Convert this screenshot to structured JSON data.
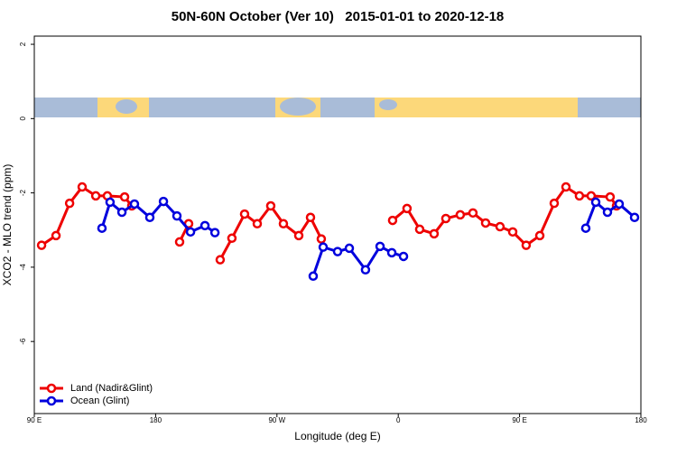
{
  "chart_data": {
    "type": "line",
    "title": "50N-60N October (Ver 10)   2015-01-01 to 2020-12-18",
    "xlabel": "Longitude (deg E)",
    "ylabel": "XCO2 - MLO trend (ppm)",
    "xlim": [
      90,
      540
    ],
    "ylim": [
      -7.94,
      2.22
    ],
    "xticks": [
      {
        "value": 90,
        "label": "90 E"
      },
      {
        "value": 180,
        "label": "180"
      },
      {
        "value": 270,
        "label": "90 W"
      },
      {
        "value": 360,
        "label": "0"
      },
      {
        "value": 450,
        "label": "90 E"
      },
      {
        "value": 540,
        "label": "180"
      }
    ],
    "yticks": [
      2,
      0,
      -2,
      -4,
      -6
    ],
    "legend": "bottom-left",
    "series": [
      {
        "name": "Land (Nadir&Glint)",
        "color": "#ee0000",
        "x": [
          95.4,
          106.1,
          116.2,
          125.5,
          135.6,
          144.2,
          157.0,
          162.3,
          180,
          197.8,
          204.5,
          216,
          227.9,
          236.6,
          246.0,
          255.4,
          265.4,
          274.8,
          286.2,
          294.9,
          302.9,
          330,
          355.8,
          366.5,
          375.9,
          386.6,
          395.3,
          406.0,
          415.4,
          424.8,
          435.5,
          444.9,
          454.9,
          465.0,
          475.7,
          484.4,
          494.4,
          503.1,
          517.2,
          521.9
        ],
        "values": [
          -3.41,
          -3.15,
          -2.28,
          -1.84,
          -2.08,
          -2.08,
          -2.11,
          -2.35,
          null,
          -3.32,
          -2.83,
          null,
          -3.8,
          -3.22,
          -2.57,
          -2.83,
          -2.35,
          -2.83,
          -3.15,
          -2.66,
          -3.24,
          null,
          -2.74,
          -2.42,
          -2.98,
          -3.1,
          -2.69,
          -2.59,
          -2.54,
          -2.81,
          -2.91,
          -3.05,
          -3.41,
          -3.15,
          -2.28,
          -1.84,
          -2.08,
          -2.08,
          -2.11,
          -2.35
        ]
      },
      {
        "name": "Ocean (Glint)",
        "color": "#0000dd",
        "x": [
          140.2,
          146.2,
          155.0,
          164.3,
          175.7,
          185.8,
          195.8,
          205.9,
          216.6,
          224.0,
          280,
          296.9,
          304.3,
          315.0,
          323.7,
          335.7,
          346.5,
          355.2,
          363.9,
          450,
          499.1,
          506.5,
          515.2,
          523.9,
          535.3
        ],
        "values": [
          -2.95,
          -2.25,
          -2.52,
          -2.3,
          -2.66,
          -2.23,
          -2.62,
          -3.05,
          -2.88,
          -3.07,
          null,
          -4.24,
          -3.46,
          -3.58,
          -3.49,
          -4.07,
          -3.44,
          -3.61,
          -3.71,
          null,
          -2.95,
          -2.25,
          -2.52,
          -2.3,
          -2.66
        ]
      }
    ]
  }
}
